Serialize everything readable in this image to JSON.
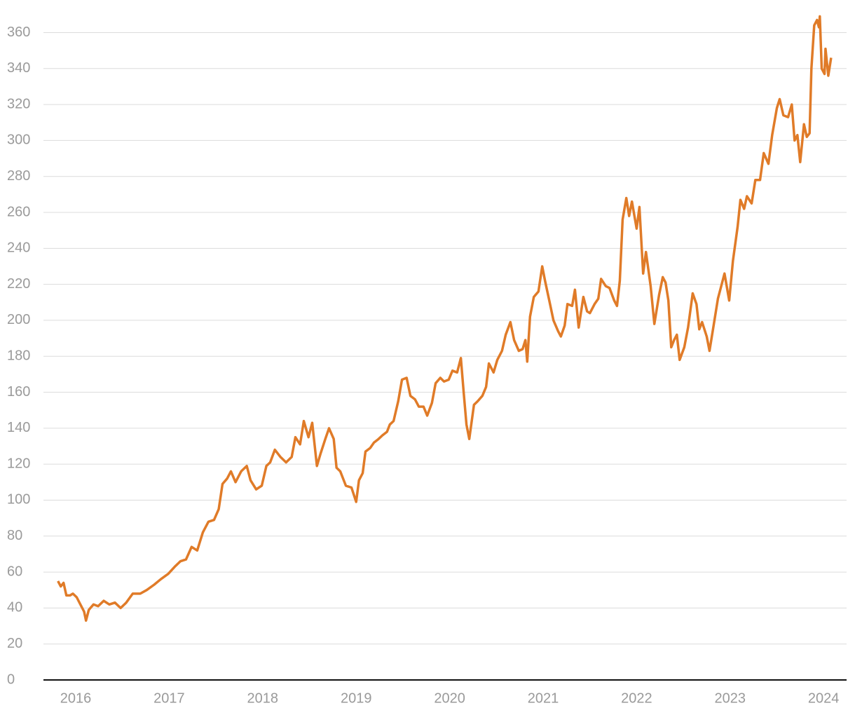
{
  "chart_data": {
    "type": "line",
    "color": "#e07b28",
    "grid": true,
    "xlim": [
      2015.655,
      2024.246
    ],
    "ylim": [
      0,
      375
    ],
    "xticks": [
      2016,
      2017,
      2018,
      2019,
      2020,
      2021,
      2022,
      2023,
      2024
    ],
    "yticks": [
      0,
      20,
      40,
      60,
      80,
      100,
      120,
      140,
      160,
      180,
      200,
      220,
      240,
      260,
      280,
      300,
      320,
      340,
      360
    ],
    "x": [
      2015.81,
      2015.84,
      2015.87,
      2015.9,
      2015.94,
      2015.97,
      2016.01,
      2016.06,
      2016.09,
      2016.11,
      2016.14,
      2016.19,
      2016.24,
      2016.3,
      2016.36,
      2016.42,
      2016.48,
      2016.54,
      2016.61,
      2016.69,
      2016.76,
      2016.84,
      2016.91,
      2016.99,
      2017.06,
      2017.12,
      2017.18,
      2017.24,
      2017.3,
      2017.36,
      2017.42,
      2017.48,
      2017.53,
      2017.57,
      2017.62,
      2017.66,
      2017.71,
      2017.77,
      2017.83,
      2017.87,
      2017.93,
      2017.99,
      2018.04,
      2018.08,
      2018.13,
      2018.19,
      2018.25,
      2018.31,
      2018.35,
      2018.4,
      2018.44,
      2018.49,
      2018.53,
      2018.58,
      2018.62,
      2018.67,
      2018.71,
      2018.76,
      2018.79,
      2018.83,
      2018.89,
      2018.95,
      2019.0,
      2019.03,
      2019.07,
      2019.1,
      2019.15,
      2019.19,
      2019.24,
      2019.28,
      2019.33,
      2019.36,
      2019.4,
      2019.45,
      2019.49,
      2019.54,
      2019.58,
      2019.63,
      2019.67,
      2019.72,
      2019.76,
      2019.81,
      2019.85,
      2019.9,
      2019.94,
      2019.99,
      2020.03,
      2020.08,
      2020.12,
      2020.15,
      2020.18,
      2020.21,
      2020.26,
      2020.3,
      2020.35,
      2020.39,
      2020.42,
      2020.47,
      2020.51,
      2020.56,
      2020.6,
      2020.65,
      2020.69,
      2020.74,
      2020.78,
      2020.81,
      2020.83,
      2020.86,
      2020.9,
      2020.95,
      2020.99,
      2021.02,
      2021.07,
      2021.11,
      2021.16,
      2021.19,
      2021.23,
      2021.26,
      2021.31,
      2021.34,
      2021.38,
      2021.43,
      2021.47,
      2021.5,
      2021.55,
      2021.59,
      2021.62,
      2021.67,
      2021.71,
      2021.76,
      2021.79,
      2021.82,
      2021.85,
      2021.89,
      2021.92,
      2021.95,
      2022.0,
      2022.03,
      2022.07,
      2022.1,
      2022.15,
      2022.19,
      2022.24,
      2022.28,
      2022.31,
      2022.34,
      2022.37,
      2022.4,
      2022.43,
      2022.46,
      2022.51,
      2022.55,
      2022.6,
      2022.64,
      2022.67,
      2022.7,
      2022.75,
      2022.78,
      2022.82,
      2022.87,
      2022.91,
      2022.94,
      2022.99,
      2023.03,
      2023.08,
      2023.11,
      2023.15,
      2023.18,
      2023.23,
      2023.27,
      2023.32,
      2023.36,
      2023.41,
      2023.45,
      2023.5,
      2023.53,
      2023.57,
      2023.62,
      2023.66,
      2023.69,
      2023.72,
      2023.75,
      2023.79,
      2023.82,
      2023.85,
      2023.87,
      2023.9,
      2023.93,
      2023.95,
      2023.96,
      2023.98,
      2024.01,
      2024.02,
      2024.05,
      2024.08
    ],
    "values": [
      55,
      52,
      54,
      47,
      47,
      48,
      46,
      41,
      38,
      33,
      39,
      42,
      41,
      44,
      42,
      43,
      40,
      43,
      48,
      48,
      50,
      53,
      56,
      59,
      63,
      66,
      67,
      74,
      72,
      82,
      88,
      89,
      95,
      109,
      112,
      116,
      110,
      116,
      119,
      111,
      106,
      108,
      119,
      121,
      128,
      124,
      121,
      124,
      135,
      131,
      144,
      135,
      143,
      119,
      126,
      134,
      140,
      134,
      118,
      116,
      108,
      107,
      99,
      111,
      115,
      127,
      129,
      132,
      134,
      136,
      138,
      142,
      144,
      155,
      167,
      168,
      158,
      156,
      152,
      152,
      147,
      154,
      165,
      168,
      166,
      167,
      172,
      171,
      179,
      160,
      142,
      134,
      153,
      155,
      158,
      163,
      176,
      171,
      178,
      183,
      192,
      199,
      189,
      183,
      184,
      189,
      177,
      202,
      213,
      216,
      230,
      222,
      210,
      200,
      194,
      191,
      197,
      209,
      208,
      217,
      196,
      213,
      205,
      204,
      209,
      212,
      223,
      219,
      218,
      211,
      208,
      222,
      256,
      268,
      258,
      266,
      251,
      263,
      226,
      238,
      219,
      198,
      214,
      224,
      221,
      211,
      185,
      189,
      192,
      178,
      185,
      196,
      215,
      209,
      195,
      199,
      191,
      183,
      196,
      212,
      220,
      226,
      211,
      233,
      252,
      267,
      262,
      269,
      265,
      278,
      278,
      293,
      287,
      303,
      318,
      323,
      314,
      313,
      320,
      300,
      303,
      288,
      309,
      302,
      304,
      340,
      364,
      367,
      363,
      369,
      340,
      337,
      351,
      336,
      346
    ]
  }
}
